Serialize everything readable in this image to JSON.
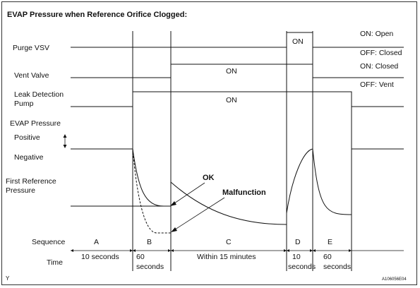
{
  "title": "EVAP Pressure when Reference Orifice Clogged:",
  "rows": {
    "purge_vsv": "Purge VSV",
    "vent_valve": "Vent Valve",
    "leak_pump_line1": "Leak Detection",
    "leak_pump_line2": "Pump",
    "evap_pressure": "EVAP Pressure",
    "positive": "Positive",
    "negative": "Negative",
    "first_ref_line1": "First Reference",
    "first_ref_line2": "Pressure",
    "sequence": "Sequence",
    "time": "Time"
  },
  "legend": {
    "on_open": "ON: Open",
    "off_closed": "OFF: Closed",
    "on_closed": "ON: Closed",
    "off_vent": "OFF: Vent"
  },
  "signals": {
    "purge_on": "ON",
    "vent_on": "ON",
    "pump_on": "ON"
  },
  "annotations": {
    "ok": "OK",
    "malfunction": "Malfunction"
  },
  "sequence": [
    "A",
    "B",
    "C",
    "D",
    "E"
  ],
  "durations": {
    "a": "10 seconds",
    "b_line1": "60",
    "b_line2": "seconds",
    "c": "Within 15 minutes",
    "d_line1": "10",
    "d_line2": "seconds",
    "e_line1": "60",
    "e_line2": "seconds"
  },
  "corner_mark": "Y",
  "figure_code": "A106056E04"
}
